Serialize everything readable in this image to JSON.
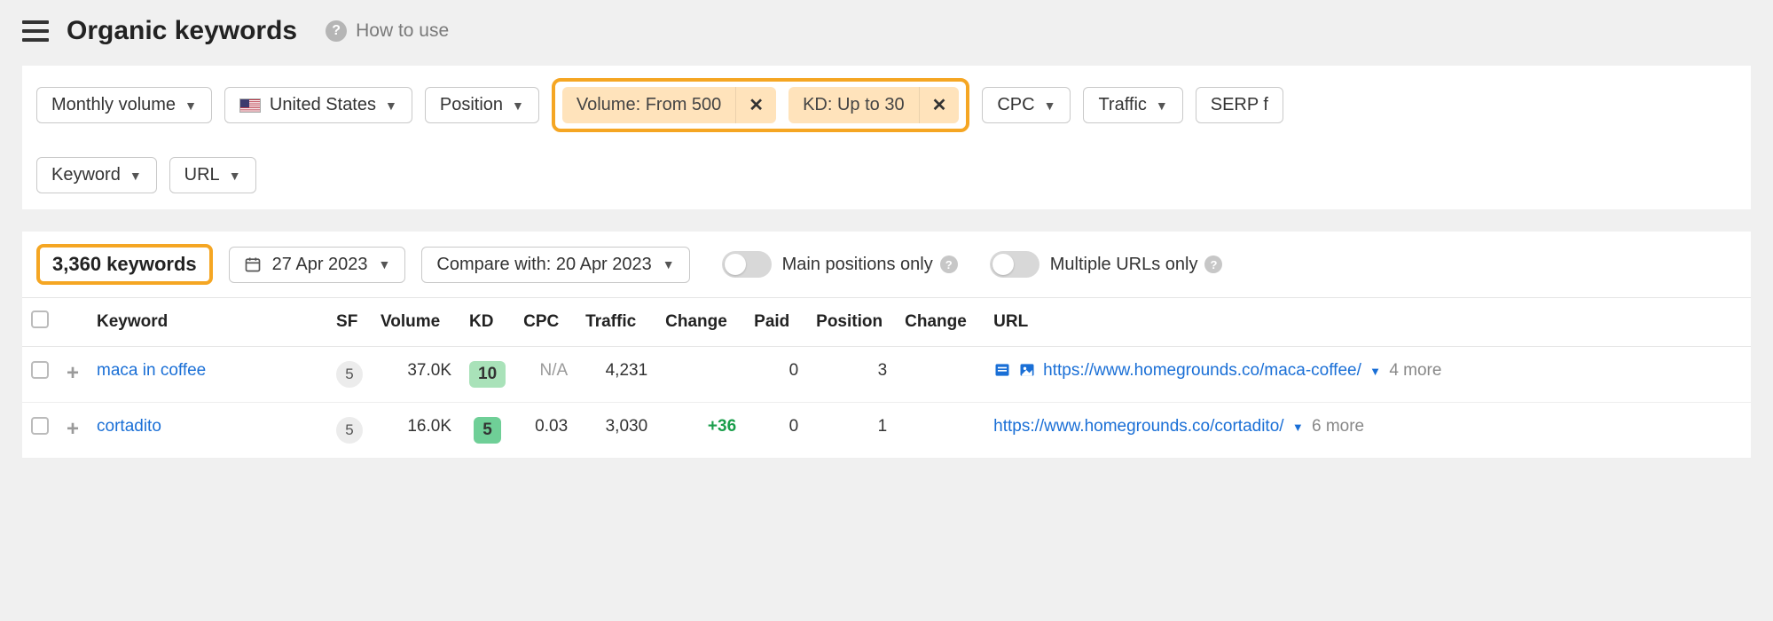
{
  "header": {
    "title": "Organic keywords",
    "help_label": "How to use"
  },
  "filters": {
    "monthly_volume": "Monthly volume",
    "country": "United States",
    "position": "Position",
    "cpc": "CPC",
    "traffic": "Traffic",
    "serp": "SERP f",
    "keyword": "Keyword",
    "url": "URL",
    "active": {
      "volume": "Volume: From 500",
      "kd": "KD: Up to 30"
    }
  },
  "results": {
    "count_label": "3,360 keywords",
    "date": "27 Apr 2023",
    "compare": "Compare with: 20 Apr 2023",
    "toggle_main": "Main positions only",
    "toggle_multi": "Multiple URLs only"
  },
  "table": {
    "columns": {
      "keyword": "Keyword",
      "sf": "SF",
      "volume": "Volume",
      "kd": "KD",
      "cpc": "CPC",
      "traffic": "Traffic",
      "change": "Change",
      "paid": "Paid",
      "position": "Position",
      "change2": "Change",
      "url": "URL"
    },
    "rows": [
      {
        "keyword": "maca in coffee",
        "sf": "5",
        "volume": "37.0K",
        "kd": "10",
        "kd_bg": "#a9e2b9",
        "cpc": "N/A",
        "cpc_muted": true,
        "traffic": "4,231",
        "change": "",
        "paid": "0",
        "position": "3",
        "change2": "",
        "url": "https://www.homegrounds.co/maca-coffee/",
        "more": "4 more",
        "serp_icons": true
      },
      {
        "keyword": "cortadito",
        "sf": "5",
        "volume": "16.0K",
        "kd": "5",
        "kd_bg": "#6fcf97",
        "cpc": "0.03",
        "cpc_muted": false,
        "traffic": "3,030",
        "change": "+36",
        "paid": "0",
        "position": "1",
        "change2": "",
        "url": "https://www.homegrounds.co/cortadito/",
        "more": "6 more",
        "serp_icons": false
      }
    ]
  },
  "colors": {
    "highlight": "#f5a623",
    "chip_bg": "#ffe3bb",
    "link": "#1a6fd6",
    "pos_green": "#1a9e4b"
  }
}
